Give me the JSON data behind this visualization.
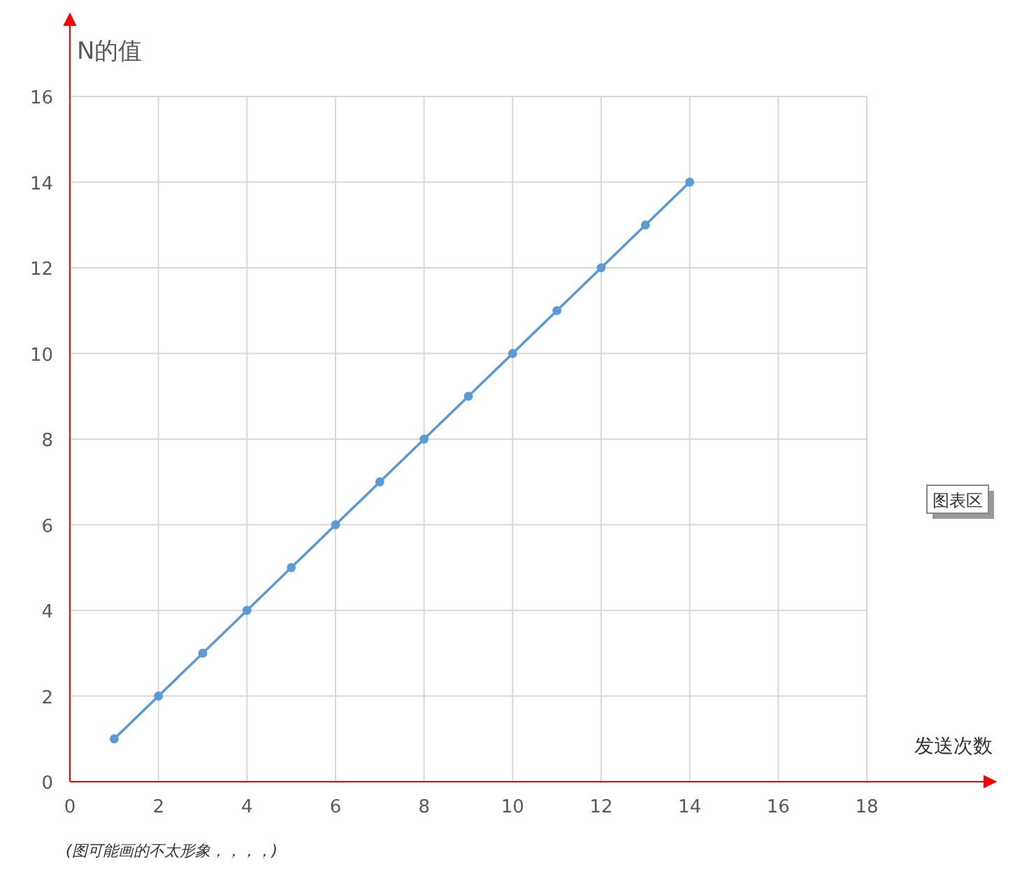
{
  "chart_data": {
    "type": "line",
    "ylabel": "N的值",
    "xlabel": "发送次数",
    "x": [
      1,
      2,
      3,
      4,
      5,
      6,
      7,
      8,
      9,
      10,
      11,
      12,
      13,
      14
    ],
    "series": [
      {
        "color": "#5b9bd5",
        "values": [
          1,
          2,
          3,
          4,
          5,
          6,
          7,
          8,
          9,
          10,
          11,
          12,
          13,
          14
        ]
      }
    ],
    "xlim": [
      0,
      18
    ],
    "xticks": [
      0,
      2,
      4,
      6,
      8,
      10,
      12,
      14,
      16,
      18
    ],
    "ylim": [
      0,
      16
    ],
    "yticks": [
      0,
      2,
      4,
      6,
      8,
      10,
      12,
      14,
      16
    ],
    "grid": true,
    "marker": "circle",
    "line_style": "solid",
    "annotations": [
      "(图可能画的不太形象，，，，)",
      "图表区"
    ]
  }
}
